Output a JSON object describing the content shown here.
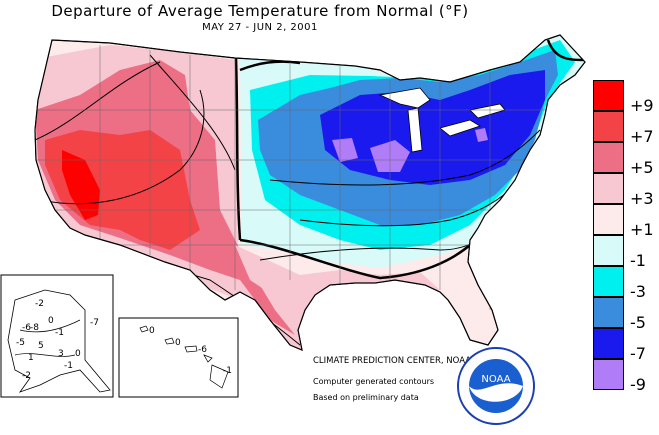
{
  "title": "Departure of Average Temperature from Normal (°F)",
  "subtitle": "MAY 27 - JUN  2, 2001",
  "legend": [
    {
      "label": "+9",
      "color": "#ff0000"
    },
    {
      "label": "+7",
      "color": "#f44346"
    },
    {
      "label": "+5",
      "color": "#ec6f85"
    },
    {
      "label": "+3",
      "color": "#f7c8d2"
    },
    {
      "label": "+1",
      "color": "#fdeaea"
    },
    {
      "label": "-1",
      "color": "#d8fbfa"
    },
    {
      "label": "-3",
      "color": "#00f0f0"
    },
    {
      "label": "-5",
      "color": "#3a8cdc"
    },
    {
      "label": "-7",
      "color": "#1a1aee"
    },
    {
      "label": "-9",
      "color": "#b07cf8"
    }
  ],
  "credits": {
    "center": "CLIMATE PREDICTION CENTER, NOAA",
    "line2": "Computer generated contours",
    "line3": "Based on preliminary data"
  },
  "logo_text": "NOAA",
  "alaska_labels": [
    "-2",
    "-6",
    "-8",
    "0",
    "-1",
    "5",
    "-5",
    "1",
    "3",
    "-2",
    "-7",
    "0",
    "-1"
  ],
  "hawaii_labels": [
    "0",
    "0",
    "-6",
    "-1"
  ]
}
